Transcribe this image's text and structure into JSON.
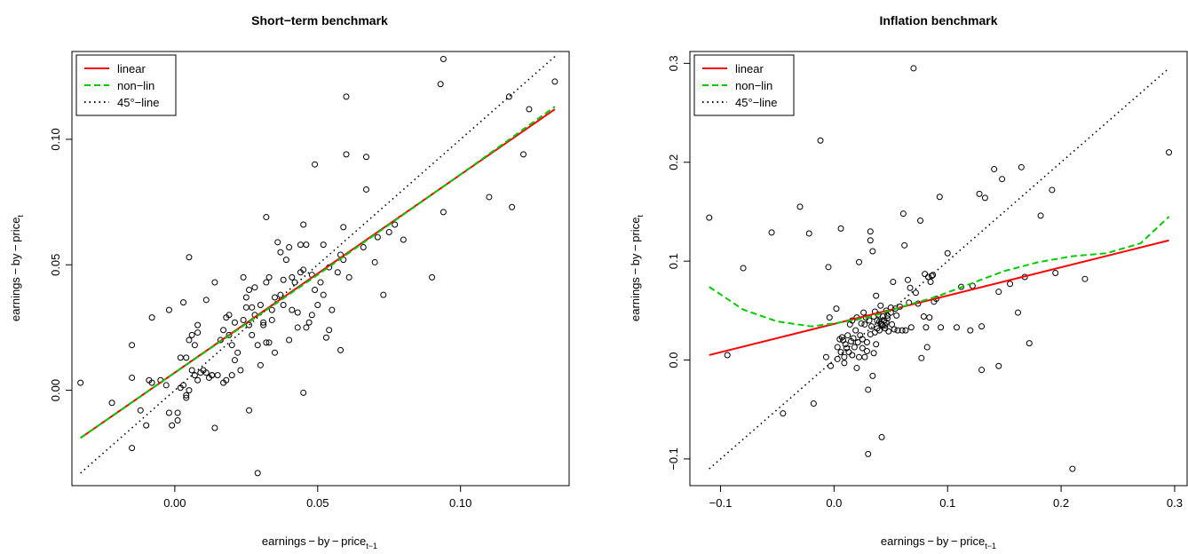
{
  "chart_data": [
    {
      "type": "scatter",
      "title": "Short−term benchmark",
      "xlabel_base": "earnings − by − price",
      "xlabel_sub": "t−1",
      "ylabel_base": "earnings − by − price",
      "ylabel_sub": "t",
      "xlim": [
        -0.036,
        0.138
      ],
      "ylim": [
        -0.038,
        0.135
      ],
      "x_ticks": [
        0.0,
        0.05,
        0.1
      ],
      "x_tick_labels": [
        "0.00",
        "0.05",
        "0.10"
      ],
      "y_ticks": [
        0.0,
        0.05,
        0.1
      ],
      "y_tick_labels": [
        "0.00",
        "0.05",
        "0.10"
      ],
      "grid": false,
      "legend_position": "top-left",
      "legend": [
        {
          "label": "linear",
          "color": "#ff0000",
          "style": "solid"
        },
        {
          "label": "non−lin",
          "color": "#00cc00",
          "style": "dashed"
        },
        {
          "label": "45°−line",
          "color": "#000000",
          "style": "dotted"
        }
      ],
      "series": [
        {
          "name": "linear",
          "x": [
            -0.033,
            0.133
          ],
          "y": [
            -0.019,
            0.112
          ]
        },
        {
          "name": "non−lin",
          "x": [
            -0.033,
            0.0,
            0.05,
            0.1,
            0.133
          ],
          "y": [
            -0.019,
            0.007,
            0.046,
            0.086,
            0.113
          ]
        },
        {
          "name": "45°−line",
          "x": [
            -0.033,
            0.133
          ],
          "y": [
            -0.033,
            0.133
          ]
        }
      ],
      "points": [
        [
          -0.033,
          0.003
        ],
        [
          -0.022,
          -0.005
        ],
        [
          -0.015,
          0.018
        ],
        [
          -0.015,
          0.005
        ],
        [
          -0.015,
          -0.023
        ],
        [
          -0.012,
          -0.008
        ],
        [
          -0.01,
          -0.014
        ],
        [
          -0.009,
          0.004
        ],
        [
          -0.008,
          0.029
        ],
        [
          -0.008,
          0.003
        ],
        [
          -0.005,
          0.004
        ],
        [
          -0.003,
          0.002
        ],
        [
          -0.002,
          0.032
        ],
        [
          -0.002,
          -0.009
        ],
        [
          -0.001,
          -0.014
        ],
        [
          0.001,
          -0.009
        ],
        [
          0.001,
          -0.012
        ],
        [
          0.002,
          0.001
        ],
        [
          0.002,
          0.013
        ],
        [
          0.003,
          0.035
        ],
        [
          0.003,
          0.002
        ],
        [
          0.004,
          0.013
        ],
        [
          0.004,
          -0.002
        ],
        [
          0.004,
          -0.003
        ],
        [
          0.005,
          0.02
        ],
        [
          0.005,
          0.0
        ],
        [
          0.005,
          0.053
        ],
        [
          0.006,
          0.022
        ],
        [
          0.006,
          0.008
        ],
        [
          0.007,
          0.018
        ],
        [
          0.007,
          0.006
        ],
        [
          0.008,
          0.023
        ],
        [
          0.008,
          0.026
        ],
        [
          0.008,
          0.004
        ],
        [
          0.009,
          0.007
        ],
        [
          0.01,
          0.008
        ],
        [
          0.011,
          0.007
        ],
        [
          0.011,
          0.036
        ],
        [
          0.012,
          0.005
        ],
        [
          0.013,
          0.006
        ],
        [
          0.013,
          0.006
        ],
        [
          0.014,
          -0.015
        ],
        [
          0.014,
          0.043
        ],
        [
          0.015,
          0.006
        ],
        [
          0.016,
          0.02
        ],
        [
          0.017,
          0.024
        ],
        [
          0.017,
          0.003
        ],
        [
          0.018,
          0.004
        ],
        [
          0.018,
          0.029
        ],
        [
          0.019,
          0.022
        ],
        [
          0.019,
          0.03
        ],
        [
          0.02,
          0.006
        ],
        [
          0.02,
          0.018
        ],
        [
          0.021,
          0.027
        ],
        [
          0.021,
          0.012
        ],
        [
          0.022,
          0.015
        ],
        [
          0.023,
          0.008
        ],
        [
          0.024,
          0.028
        ],
        [
          0.024,
          0.045
        ],
        [
          0.025,
          0.037
        ],
        [
          0.025,
          0.033
        ],
        [
          0.026,
          0.026
        ],
        [
          0.026,
          -0.008
        ],
        [
          0.026,
          0.04
        ],
        [
          0.027,
          0.033
        ],
        [
          0.027,
          0.022
        ],
        [
          0.028,
          0.041
        ],
        [
          0.028,
          0.03
        ],
        [
          0.029,
          0.018
        ],
        [
          0.029,
          -0.033
        ],
        [
          0.03,
          0.034
        ],
        [
          0.03,
          0.01
        ],
        [
          0.031,
          0.027
        ],
        [
          0.031,
          0.026
        ],
        [
          0.032,
          0.019
        ],
        [
          0.032,
          0.043
        ],
        [
          0.032,
          0.069
        ],
        [
          0.033,
          0.045
        ],
        [
          0.033,
          0.019
        ],
        [
          0.034,
          0.032
        ],
        [
          0.034,
          0.028
        ],
        [
          0.035,
          0.015
        ],
        [
          0.035,
          0.037
        ],
        [
          0.036,
          0.059
        ],
        [
          0.037,
          0.055
        ],
        [
          0.037,
          0.038
        ],
        [
          0.038,
          0.034
        ],
        [
          0.038,
          0.044
        ],
        [
          0.039,
          0.052
        ],
        [
          0.04,
          0.057
        ],
        [
          0.04,
          0.02
        ],
        [
          0.041,
          0.045
        ],
        [
          0.041,
          0.032
        ],
        [
          0.042,
          0.043
        ],
        [
          0.043,
          0.025
        ],
        [
          0.043,
          0.031
        ],
        [
          0.044,
          0.058
        ],
        [
          0.044,
          0.047
        ],
        [
          0.045,
          -0.001
        ],
        [
          0.045,
          0.066
        ],
        [
          0.045,
          0.048
        ],
        [
          0.046,
          0.058
        ],
        [
          0.046,
          0.025
        ],
        [
          0.047,
          0.027
        ],
        [
          0.048,
          0.03
        ],
        [
          0.048,
          0.046
        ],
        [
          0.049,
          0.09
        ],
        [
          0.049,
          0.04
        ],
        [
          0.05,
          0.034
        ],
        [
          0.051,
          0.043
        ],
        [
          0.052,
          0.038
        ],
        [
          0.052,
          0.058
        ],
        [
          0.053,
          0.021
        ],
        [
          0.054,
          0.049
        ],
        [
          0.054,
          0.024
        ],
        [
          0.055,
          0.032
        ],
        [
          0.057,
          0.047
        ],
        [
          0.058,
          0.054
        ],
        [
          0.058,
          0.016
        ],
        [
          0.059,
          0.065
        ],
        [
          0.059,
          0.052
        ],
        [
          0.06,
          0.094
        ],
        [
          0.06,
          0.117
        ],
        [
          0.061,
          0.045
        ],
        [
          0.066,
          0.057
        ],
        [
          0.067,
          0.08
        ],
        [
          0.067,
          0.093
        ],
        [
          0.07,
          0.051
        ],
        [
          0.071,
          0.061
        ],
        [
          0.073,
          0.038
        ],
        [
          0.075,
          0.063
        ],
        [
          0.077,
          0.066
        ],
        [
          0.08,
          0.06
        ],
        [
          0.09,
          0.045
        ],
        [
          0.093,
          0.122
        ],
        [
          0.094,
          0.132
        ],
        [
          0.094,
          0.071
        ],
        [
          0.11,
          0.077
        ],
        [
          0.117,
          0.117
        ],
        [
          0.118,
          0.073
        ],
        [
          0.122,
          0.094
        ],
        [
          0.124,
          0.112
        ],
        [
          0.133,
          0.123
        ]
      ]
    },
    {
      "type": "scatter",
      "title": "Inflation benchmark",
      "xlabel_base": "earnings − by − price",
      "xlabel_sub": "t−1",
      "ylabel_base": "earnings − by − price",
      "ylabel_sub": "t",
      "xlim": [
        -0.127,
        0.311
      ],
      "ylim": [
        -0.127,
        0.312
      ],
      "x_ticks": [
        -0.1,
        0.0,
        0.1,
        0.2,
        0.3
      ],
      "x_tick_labels": [
        "−0.1",
        "0.0",
        "0.1",
        "0.2",
        "0.3"
      ],
      "y_ticks": [
        -0.1,
        0.0,
        0.1,
        0.2,
        0.3
      ],
      "y_tick_labels": [
        "−0.1",
        "0.0",
        "0.1",
        "0.2",
        "0.3"
      ],
      "grid": false,
      "legend_position": "top-left",
      "legend": [
        {
          "label": "linear",
          "color": "#ff0000",
          "style": "solid"
        },
        {
          "label": "non−lin",
          "color": "#00cc00",
          "style": "dashed"
        },
        {
          "label": "45°−line",
          "color": "#000000",
          "style": "dotted"
        }
      ],
      "series": [
        {
          "name": "linear",
          "x": [
            -0.11,
            0.295
          ],
          "y": [
            0.005,
            0.121
          ]
        },
        {
          "name": "non−lin",
          "x": [
            -0.11,
            -0.08,
            -0.05,
            -0.02,
            0.0,
            0.03,
            0.06,
            0.09,
            0.12,
            0.15,
            0.18,
            0.21,
            0.24,
            0.27,
            0.295
          ],
          "y": [
            0.074,
            0.051,
            0.039,
            0.034,
            0.037,
            0.043,
            0.054,
            0.064,
            0.077,
            0.09,
            0.099,
            0.105,
            0.108,
            0.118,
            0.145
          ]
        },
        {
          "name": "45°−line",
          "x": [
            -0.11,
            0.295
          ],
          "y": [
            -0.11,
            0.295
          ]
        }
      ],
      "points": [
        [
          -0.11,
          0.144
        ],
        [
          -0.094,
          0.005
        ],
        [
          -0.08,
          0.093
        ],
        [
          -0.055,
          0.129
        ],
        [
          -0.045,
          -0.054
        ],
        [
          -0.03,
          0.155
        ],
        [
          -0.022,
          0.128
        ],
        [
          -0.018,
          -0.044
        ],
        [
          -0.012,
          0.222
        ],
        [
          -0.007,
          0.003
        ],
        [
          -0.005,
          0.094
        ],
        [
          -0.004,
          0.043
        ],
        [
          -0.003,
          -0.006
        ],
        [
          0.002,
          0.052
        ],
        [
          0.003,
          0.013
        ],
        [
          0.003,
          0.001
        ],
        [
          0.005,
          0.021
        ],
        [
          0.006,
          0.133
        ],
        [
          0.006,
          0.008
        ],
        [
          0.007,
          0.023
        ],
        [
          0.008,
          0.02
        ],
        [
          0.009,
          -0.003
        ],
        [
          0.009,
          0.003
        ],
        [
          0.01,
          0.016
        ],
        [
          0.011,
          0.012
        ],
        [
          0.012,
          0.025
        ],
        [
          0.013,
          0.008
        ],
        [
          0.014,
          0.036
        ],
        [
          0.015,
          0.019
        ],
        [
          0.016,
          0.04
        ],
        [
          0.016,
          0.005
        ],
        [
          0.017,
          0.022
        ],
        [
          0.018,
          0.013
        ],
        [
          0.019,
          0.03
        ],
        [
          0.02,
          0.043
        ],
        [
          0.02,
          -0.008
        ],
        [
          0.021,
          0.018
        ],
        [
          0.022,
          0.099
        ],
        [
          0.022,
          0.003
        ],
        [
          0.023,
          0.025
        ],
        [
          0.024,
          0.037
        ],
        [
          0.025,
          0.012
        ],
        [
          0.025,
          0.021
        ],
        [
          0.026,
          0.048
        ],
        [
          0.027,
          0.036
        ],
        [
          0.027,
          0.003
        ],
        [
          0.028,
          0.043
        ],
        [
          0.029,
          0.018
        ],
        [
          0.029,
          0.009
        ],
        [
          0.03,
          -0.095
        ],
        [
          0.03,
          -0.03
        ],
        [
          0.031,
          0.04
        ],
        [
          0.032,
          0.13
        ],
        [
          0.032,
          0.121
        ],
        [
          0.032,
          0.026
        ],
        [
          0.033,
          0.034
        ],
        [
          0.034,
          0.11
        ],
        [
          0.034,
          -0.016
        ],
        [
          0.035,
          0.044
        ],
        [
          0.035,
          0.007
        ],
        [
          0.036,
          0.028
        ],
        [
          0.036,
          0.049
        ],
        [
          0.037,
          0.065
        ],
        [
          0.037,
          0.016
        ],
        [
          0.038,
          0.04
        ],
        [
          0.038,
          0.032
        ],
        [
          0.039,
          0.046
        ],
        [
          0.04,
          0.039
        ],
        [
          0.04,
          0.03
        ],
        [
          0.041,
          0.037
        ],
        [
          0.041,
          0.055
        ],
        [
          0.042,
          -0.078
        ],
        [
          0.042,
          0.036
        ],
        [
          0.043,
          0.044
        ],
        [
          0.043,
          0.035
        ],
        [
          0.044,
          0.04
        ],
        [
          0.045,
          0.032
        ],
        [
          0.045,
          0.035
        ],
        [
          0.046,
          0.05
        ],
        [
          0.046,
          0.038
        ],
        [
          0.047,
          0.042
        ],
        [
          0.047,
          0.045
        ],
        [
          0.048,
          0.029
        ],
        [
          0.05,
          0.048
        ],
        [
          0.05,
          0.053
        ],
        [
          0.051,
          0.036
        ],
        [
          0.052,
          0.079
        ],
        [
          0.053,
          0.031
        ],
        [
          0.054,
          0.052
        ],
        [
          0.055,
          0.045
        ],
        [
          0.056,
          0.03
        ],
        [
          0.058,
          0.054
        ],
        [
          0.06,
          0.03
        ],
        [
          0.061,
          0.148
        ],
        [
          0.062,
          0.116
        ],
        [
          0.063,
          0.03
        ],
        [
          0.065,
          0.081
        ],
        [
          0.066,
          0.058
        ],
        [
          0.067,
          0.073
        ],
        [
          0.068,
          0.033
        ],
        [
          0.07,
          0.295
        ],
        [
          0.072,
          0.068
        ],
        [
          0.074,
          0.057
        ],
        [
          0.076,
          0.141
        ],
        [
          0.077,
          0.002
        ],
        [
          0.079,
          0.044
        ],
        [
          0.08,
          0.087
        ],
        [
          0.081,
          0.033
        ],
        [
          0.082,
          0.013
        ],
        [
          0.083,
          0.084
        ],
        [
          0.084,
          0.043
        ],
        [
          0.085,
          0.079
        ],
        [
          0.086,
          0.085
        ],
        [
          0.087,
          0.086
        ],
        [
          0.088,
          0.059
        ],
        [
          0.09,
          0.062
        ],
        [
          0.093,
          0.165
        ],
        [
          0.094,
          0.033
        ],
        [
          0.1,
          0.108
        ],
        [
          0.108,
          0.033
        ],
        [
          0.112,
          0.074
        ],
        [
          0.12,
          0.03
        ],
        [
          0.122,
          0.075
        ],
        [
          0.128,
          0.168
        ],
        [
          0.13,
          0.034
        ],
        [
          0.13,
          -0.01
        ],
        [
          0.133,
          0.164
        ],
        [
          0.141,
          0.193
        ],
        [
          0.145,
          0.069
        ],
        [
          0.145,
          -0.006
        ],
        [
          0.148,
          0.183
        ],
        [
          0.155,
          0.077
        ],
        [
          0.162,
          0.048
        ],
        [
          0.165,
          0.195
        ],
        [
          0.168,
          0.084
        ],
        [
          0.172,
          0.017
        ],
        [
          0.182,
          0.146
        ],
        [
          0.192,
          0.172
        ],
        [
          0.195,
          0.088
        ],
        [
          0.21,
          -0.11
        ],
        [
          0.221,
          0.082
        ],
        [
          0.295,
          0.21
        ]
      ]
    }
  ]
}
